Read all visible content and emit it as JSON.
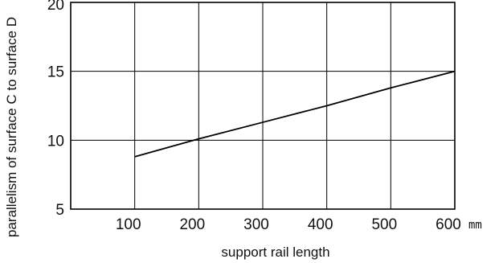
{
  "chart_data": {
    "type": "line",
    "title": "",
    "xlabel": "support rail length",
    "ylabel": "parallelism of surface C to surface D",
    "x_unit": "mm",
    "xlim": [
      0,
      600
    ],
    "ylim": [
      5,
      20
    ],
    "x_ticks": [
      100,
      200,
      300,
      400,
      500,
      600
    ],
    "y_ticks": [
      5,
      10,
      15,
      20
    ],
    "grid": true,
    "legend": "none",
    "series": [
      {
        "x": [
          100,
          200,
          300,
          400,
          500,
          600
        ],
        "y": [
          8.8,
          10.1,
          11.3,
          12.5,
          13.8,
          15.0
        ]
      }
    ],
    "colors": {
      "line": "#000000",
      "grid": "#000000",
      "background": "#ffffff"
    }
  }
}
